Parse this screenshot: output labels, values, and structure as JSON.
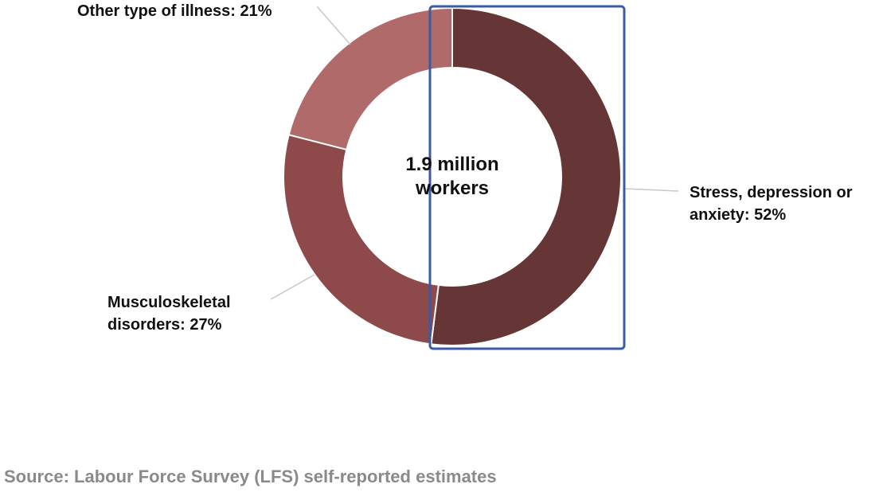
{
  "chart_data": {
    "type": "donut",
    "categories": [
      "Stress, depression or anxiety: 52%",
      "Musculoskeletal disorders: 27%",
      "Other type of illness: 21%"
    ],
    "values": [
      52,
      27,
      21
    ],
    "colors": [
      "#663535",
      "#8e4a4a",
      "#b06a6a"
    ],
    "center_label": "1.9 million workers",
    "source": "Source: Labour Force Survey (LFS) self-reported estimates"
  }
}
